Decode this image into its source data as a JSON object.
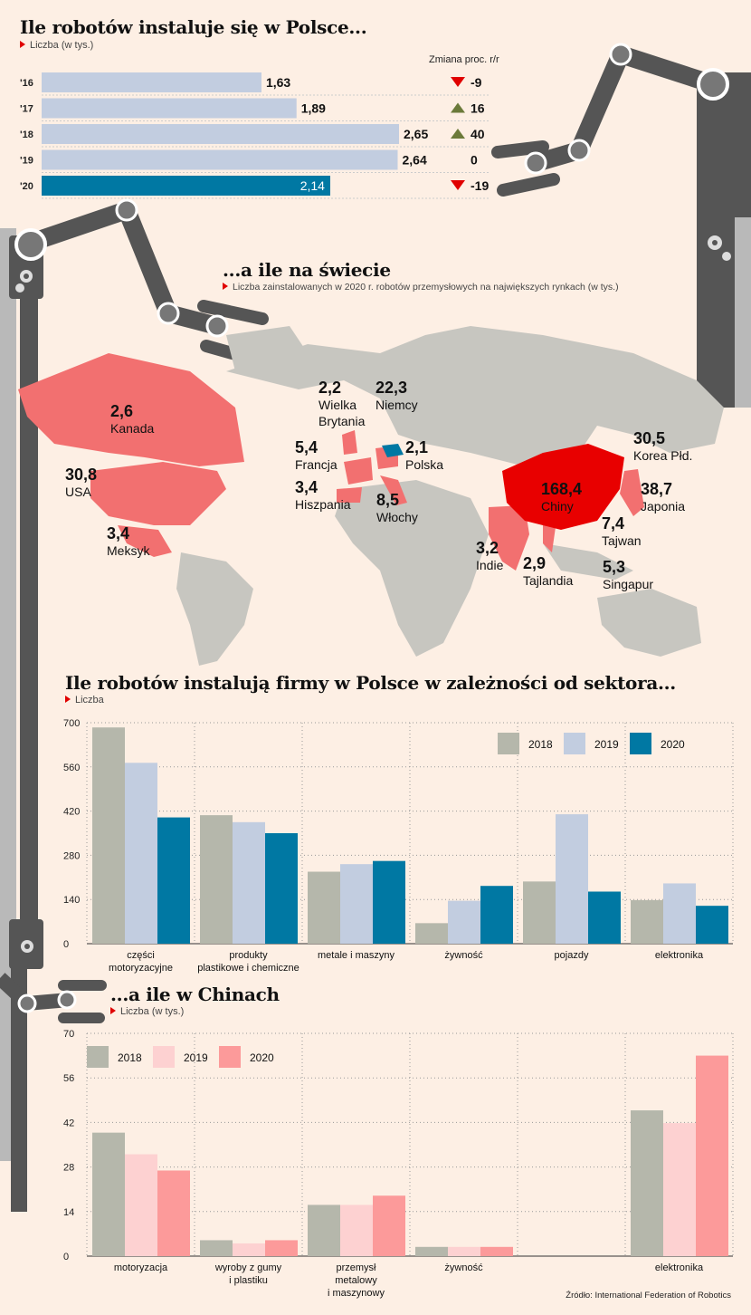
{
  "poland": {
    "title": "Ile robotów instaluje się w Polsce...",
    "subtitle": "Liczba (w tys.)",
    "change_header": "Zmiana proc. r/r",
    "rows": [
      {
        "year": "'16",
        "value": 1.63,
        "label": "1,63",
        "change": "-9",
        "trend": "down"
      },
      {
        "year": "'17",
        "value": 1.89,
        "label": "1,89",
        "change": "16",
        "trend": "up"
      },
      {
        "year": "'18",
        "value": 2.65,
        "label": "2,65",
        "change": "40",
        "trend": "up"
      },
      {
        "year": "'19",
        "value": 2.64,
        "label": "2,64",
        "change": "0",
        "trend": "none"
      },
      {
        "year": "'20",
        "value": 2.14,
        "label": "2,14",
        "change": "-19",
        "trend": "down"
      }
    ]
  },
  "world": {
    "title": "...a ile na świecie",
    "subtitle": "Liczba zainstalowanych w 2020 r. robotów przemysłowych na największych rynkach (w tys.)",
    "countries": [
      {
        "value": "2,6",
        "name": "Kanada"
      },
      {
        "value": "30,8",
        "name": "USA"
      },
      {
        "value": "3,4",
        "name": "Meksyk"
      },
      {
        "value": "2,2",
        "name": "Wielka Brytania"
      },
      {
        "value": "22,3",
        "name": "Niemcy"
      },
      {
        "value": "5,4",
        "name": "Francja"
      },
      {
        "value": "2,1",
        "name": "Polska"
      },
      {
        "value": "3,4",
        "name": "Hiszpania"
      },
      {
        "value": "8,5",
        "name": "Włochy"
      },
      {
        "value": "30,5",
        "name": "Korea Płd."
      },
      {
        "value": "168,4",
        "name": "Chiny"
      },
      {
        "value": "38,7",
        "name": "Japonia"
      },
      {
        "value": "7,4",
        "name": "Tajwan"
      },
      {
        "value": "3,2",
        "name": "Indie"
      },
      {
        "value": "2,9",
        "name": "Tajlandia"
      },
      {
        "value": "5,3",
        "name": "Singapur"
      }
    ]
  },
  "chart_data": [
    {
      "type": "bar",
      "title": "Ile robotów instalują firmy w Polsce w zależności od sektora...",
      "ylabel": "Liczba",
      "ylim": [
        0,
        700
      ],
      "yticks": [
        "0",
        "140",
        "280",
        "420",
        "560",
        "700"
      ],
      "categories": [
        "części motoryzacyjne",
        "produkty plastikowe i chemiczne",
        "metale i maszyny",
        "żywność",
        "pojazdy",
        "elektronika"
      ],
      "series": [
        {
          "name": "2018",
          "color": "#b5b7ab",
          "values": [
            685,
            407,
            228,
            65,
            197,
            138
          ]
        },
        {
          "name": "2019",
          "color": "#c2cde0",
          "values": [
            573,
            385,
            252,
            136,
            410,
            191
          ]
        },
        {
          "name": "2020",
          "color": "#0078a3",
          "values": [
            400,
            350,
            262,
            183,
            165,
            120
          ]
        }
      ],
      "legend": "top-right"
    },
    {
      "type": "bar",
      "title": "...a ile w Chinach",
      "ylabel": "Liczba (w tys.)",
      "ylim": [
        0,
        70
      ],
      "yticks": [
        "0",
        "14",
        "28",
        "42",
        "56",
        "70"
      ],
      "categories": [
        "motoryzacja",
        "wyroby z gumy i plastiku",
        "przemysł metalowy i maszynowy",
        "żywność",
        "",
        "elektronika"
      ],
      "series": [
        {
          "name": "2018",
          "color": "#b5b7ab",
          "values": [
            38.8,
            5.0,
            16.1,
            2.9,
            0,
            45.8
          ]
        },
        {
          "name": "2019",
          "color": "#fdd1d1",
          "values": [
            32.0,
            4.0,
            16.1,
            2.9,
            0,
            41.8
          ]
        },
        {
          "name": "2020",
          "color": "#fc9a9a",
          "values": [
            26.9,
            5.0,
            19.0,
            2.9,
            0,
            63.0
          ]
        }
      ],
      "legend": "top-left"
    }
  ],
  "source": "Źródło: International Federation of Robotics"
}
